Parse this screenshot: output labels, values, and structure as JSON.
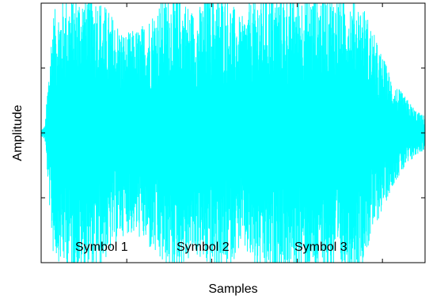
{
  "chart_data": {
    "type": "line",
    "title": "",
    "xlabel": "Samples",
    "ylabel": "Amplitude",
    "grid": false,
    "xticklabels": [],
    "yticklabels": [],
    "series": [
      {
        "color": "#00ffff"
      }
    ],
    "envelope": {
      "x": [
        0,
        0.01,
        0.02,
        0.03,
        0.06,
        0.1,
        0.14,
        0.18,
        0.22,
        0.26,
        0.3,
        0.33,
        0.36,
        0.4,
        0.44,
        0.48,
        0.52,
        0.56,
        0.6,
        0.64,
        0.68,
        0.72,
        0.76,
        0.8,
        0.84,
        0.88,
        0.92,
        0.95,
        0.98,
        1.0
      ],
      "amplitude": [
        0.02,
        0.05,
        0.45,
        0.85,
        0.95,
        1.0,
        1.0,
        0.85,
        0.7,
        0.75,
        0.9,
        1.0,
        1.0,
        0.85,
        1.0,
        1.0,
        0.8,
        1.0,
        1.0,
        1.0,
        1.0,
        1.0,
        1.0,
        1.0,
        0.9,
        0.6,
        0.35,
        0.25,
        0.15,
        0.12
      ]
    },
    "annotations": [
      "Symbol 1",
      "Symbol 2",
      "Symbol 3"
    ]
  }
}
